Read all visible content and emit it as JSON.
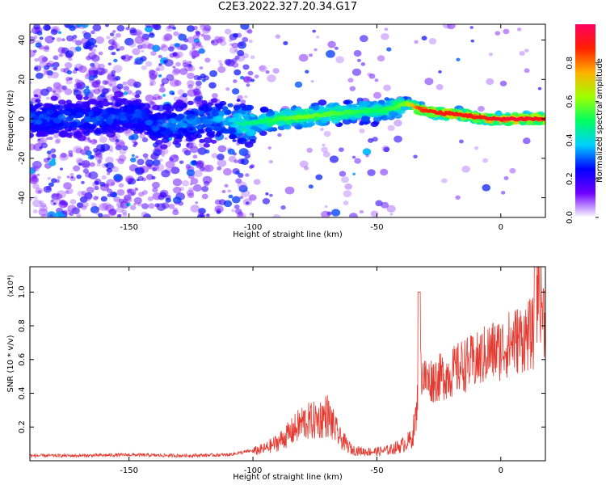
{
  "page": {
    "title": "C2E3.2022.327.20.34.G17"
  },
  "chart_data": [
    {
      "type": "heatmap",
      "title": "C2E3.2022.327.20.34.G17",
      "xlabel": "Height of straight line (km)",
      "ylabel": "Frequency (Hz)",
      "xlim": [
        -190,
        18
      ],
      "ylim": [
        -50,
        48
      ],
      "xticks": [
        -150,
        -100,
        -50,
        0
      ],
      "yticks": [
        -40,
        -20,
        0,
        20,
        40
      ],
      "colorbar": {
        "label": "Normalized spectral amplitude",
        "range": [
          0,
          1
        ],
        "ticks": [
          0.0,
          0.2,
          0.4,
          0.6,
          0.8
        ],
        "colormap": [
          "#ffffff",
          "#7000ff",
          "#0000ff",
          "#00d0ff",
          "#00ff60",
          "#a0ff00",
          "#ffb000",
          "#ff2000",
          "#ff0060"
        ]
      },
      "ridge": {
        "x": [
          -185,
          -160,
          -148,
          -143,
          -140,
          -130,
          -120,
          -110,
          -105,
          -95,
          -80,
          -65,
          -50,
          -42,
          -38,
          -33,
          -25,
          -15,
          -5,
          5,
          18
        ],
        "frequency": [
          0,
          0,
          2,
          0,
          -4,
          -2,
          -1,
          0,
          -3,
          -1,
          1,
          3,
          4,
          6,
          8,
          5,
          3,
          2,
          0,
          0,
          0
        ],
        "peak_amplitude": [
          0.25,
          0.25,
          0.25,
          0.25,
          0.25,
          0.3,
          0.3,
          0.35,
          0.45,
          0.5,
          0.6,
          0.55,
          0.5,
          0.55,
          0.6,
          0.85,
          0.9,
          0.9,
          0.9,
          0.95,
          0.9
        ]
      }
    },
    {
      "type": "line",
      "xlabel": "Height of straight line (km)",
      "ylabel": "SNR (10 * v/v)",
      "y_scale_note": "(x10⁴)",
      "xlim": [
        -190,
        18
      ],
      "ylim": [
        0,
        1.15
      ],
      "xticks": [
        -150,
        -100,
        -50,
        0
      ],
      "yticks": [
        0.2,
        0.4,
        0.6,
        0.8,
        1.0
      ],
      "series": [
        {
          "color": "#e53a30",
          "x": [
            -190,
            -170,
            -150,
            -130,
            -110,
            -100,
            -95,
            -90,
            -85,
            -80,
            -75,
            -72,
            -70,
            -65,
            -60,
            -55,
            -50,
            -45,
            -40,
            -36,
            -34,
            -33,
            -30,
            -25,
            -20,
            -15,
            -10,
            -5,
            0,
            5,
            10,
            14,
            15,
            18
          ],
          "values": [
            0.03,
            0.03,
            0.035,
            0.03,
            0.035,
            0.06,
            0.08,
            0.12,
            0.18,
            0.25,
            0.26,
            0.28,
            0.3,
            0.15,
            0.07,
            0.06,
            0.06,
            0.07,
            0.1,
            0.14,
            0.3,
            0.6,
            0.5,
            0.52,
            0.55,
            0.6,
            0.62,
            0.68,
            0.7,
            0.75,
            0.78,
            0.8,
            1.15,
            0.85
          ]
        }
      ]
    }
  ]
}
